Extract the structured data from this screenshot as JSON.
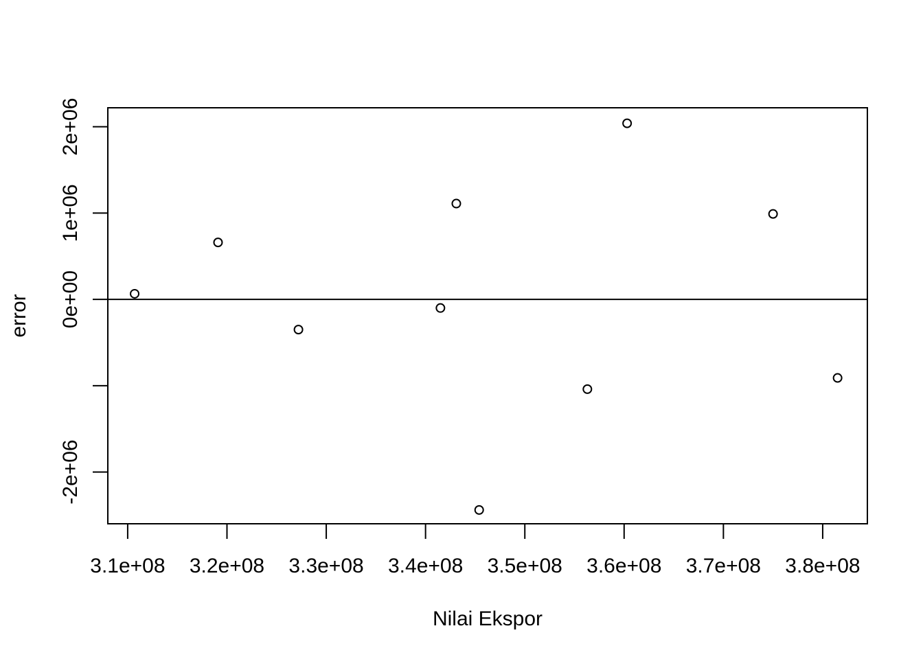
{
  "chart_data": {
    "type": "scatter",
    "title": "",
    "xlabel": "Nilai Ekspor",
    "ylabel": "error",
    "xlim": [
      308000000,
      384500000
    ],
    "ylim": [
      -2600000,
      2220000
    ],
    "x_ticks": [
      310000000,
      320000000,
      330000000,
      340000000,
      350000000,
      360000000,
      370000000,
      380000000
    ],
    "x_tick_labels": [
      "3.1e+08",
      "3.2e+08",
      "3.3e+08",
      "3.4e+08",
      "3.5e+08",
      "3.6e+08",
      "3.7e+08",
      "3.8e+08"
    ],
    "y_ticks": [
      -2000000,
      -1000000,
      0,
      1000000,
      2000000
    ],
    "y_tick_labels": [
      "-2e+06",
      "",
      "0e+00",
      "1e+06",
      "2e+06"
    ],
    "reference_line_y": 0,
    "grid": false,
    "marker": "open-circle",
    "points": [
      {
        "x": 310700000,
        "y": 65000
      },
      {
        "x": 319100000,
        "y": 660000
      },
      {
        "x": 327200000,
        "y": -350000
      },
      {
        "x": 341500000,
        "y": -100000
      },
      {
        "x": 343100000,
        "y": 1110000
      },
      {
        "x": 345400000,
        "y": -2440000
      },
      {
        "x": 356300000,
        "y": -1040000
      },
      {
        "x": 360300000,
        "y": 2040000
      },
      {
        "x": 375000000,
        "y": 990000
      },
      {
        "x": 381500000,
        "y": -910000
      }
    ]
  }
}
